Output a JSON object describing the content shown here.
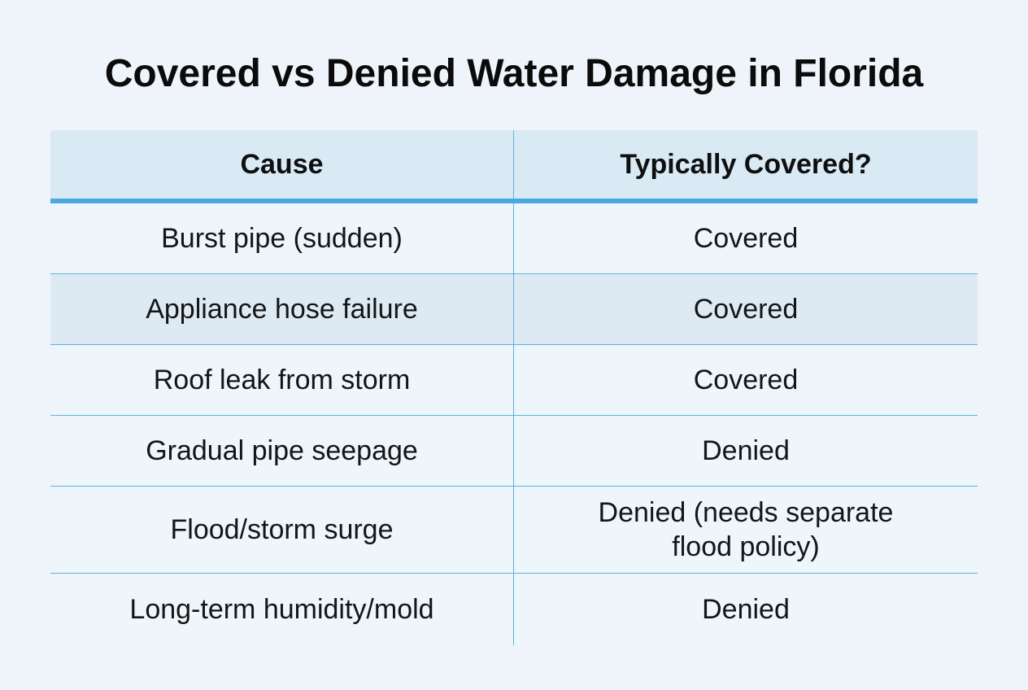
{
  "title": "Covered vs Denied Water Damage in Florida",
  "table": {
    "headers": {
      "cause": "Cause",
      "covered": "Typically Covered?"
    },
    "rows": [
      {
        "cause": "Burst pipe (sudden)",
        "covered": "Covered"
      },
      {
        "cause": "Appliance hose failure",
        "covered": "Covered"
      },
      {
        "cause": "Roof leak from storm",
        "covered": "Covered"
      },
      {
        "cause": "Gradual pipe seepage",
        "covered": "Denied"
      },
      {
        "cause": "Flood/storm surge",
        "covered": "Denied (needs separate flood policy)"
      },
      {
        "cause": "Long-term humidity/mold",
        "covered": "Denied"
      }
    ]
  },
  "colors": {
    "background": "#eef4fa",
    "header_background": "#d9eaf5",
    "header_underline": "#4aa9de",
    "grid_line": "#5bb6d6",
    "shaded_row": "#ddeaf4"
  }
}
